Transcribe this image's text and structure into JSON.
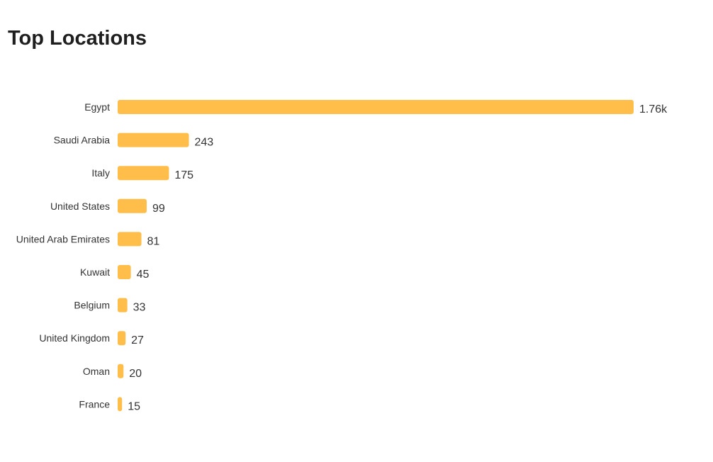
{
  "title": "Top Locations",
  "chart_data": {
    "type": "bar",
    "orientation": "horizontal",
    "title": "Top Locations",
    "bar_color": "#FFBD4A",
    "grid": false,
    "legend": "none",
    "categories": [
      "Egypt",
      "Saudi Arabia",
      "Italy",
      "United States",
      "United Arab Emirates",
      "Kuwait",
      "Belgium",
      "United Kingdom",
      "Oman",
      "France"
    ],
    "values": [
      1760,
      243,
      175,
      99,
      81,
      45,
      33,
      27,
      20,
      15
    ],
    "value_labels": [
      "1.76k",
      "243",
      "175",
      "99",
      "81",
      "45",
      "33",
      "27",
      "20",
      "15"
    ],
    "xlim": [
      0,
      1760
    ]
  }
}
